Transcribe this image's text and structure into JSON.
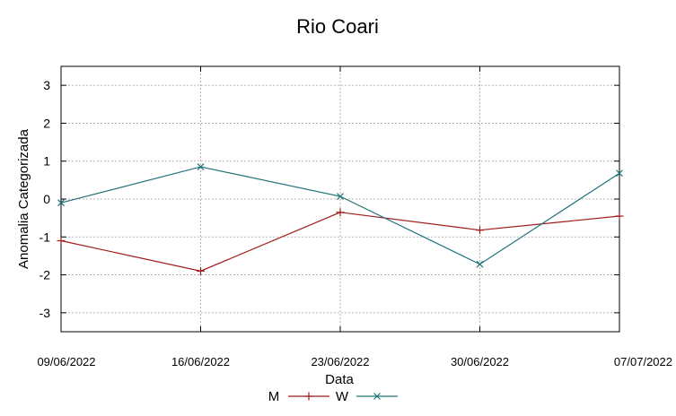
{
  "chart_data": {
    "type": "line",
    "title": "Rio Coari",
    "xlabel": "Data",
    "ylabel": "Anomalia Categorizada",
    "categories": [
      "09/06/2022",
      "16/06/2022",
      "23/06/2022",
      "30/06/2022",
      "07/07/2022"
    ],
    "ylim": [
      -3.5,
      3.5
    ],
    "yticks": [
      3,
      2,
      1,
      0,
      -1,
      -2,
      -3
    ],
    "ytick_labels": [
      "3",
      "2",
      "1",
      "0",
      "-1",
      "-2",
      "-3"
    ],
    "grid": true,
    "legend_position": "bottom-center",
    "series": [
      {
        "name": "M",
        "marker": "+",
        "color": "#a01b1b",
        "values": [
          -1.1,
          -1.9,
          -0.35,
          -0.82,
          -0.45
        ]
      },
      {
        "name": "W",
        "marker": "x",
        "color": "#1f7378",
        "values": [
          -0.1,
          0.85,
          0.07,
          -1.72,
          0.68
        ]
      }
    ]
  }
}
